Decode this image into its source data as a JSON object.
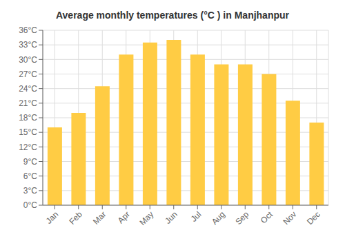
{
  "chart_data": {
    "type": "bar",
    "title": "Average monthly temperatures (°C ) in Manjhanpur",
    "categories": [
      "Jan",
      "Feb",
      "Mar",
      "Apr",
      "May",
      "Jun",
      "Jul",
      "Aug",
      "Sep",
      "Oct",
      "Nov",
      "Dec"
    ],
    "values": [
      16,
      19,
      24.5,
      31,
      33.5,
      34,
      31,
      29,
      29,
      27,
      21.5,
      17
    ],
    "color": "#FFCC44",
    "ylim": [
      0,
      36
    ],
    "yticks": [
      {
        "value": 0,
        "label": "0°C"
      },
      {
        "value": 3,
        "label": "3°C"
      },
      {
        "value": 6,
        "label": "6°C"
      },
      {
        "value": 9,
        "label": "9°C"
      },
      {
        "value": 12,
        "label": "12°C"
      },
      {
        "value": 15,
        "label": "15°C"
      },
      {
        "value": 18,
        "label": "18°C"
      },
      {
        "value": 21,
        "label": "21°C"
      },
      {
        "value": 24,
        "label": "24°C"
      },
      {
        "value": 27,
        "label": "27°C"
      },
      {
        "value": 30,
        "label": "30°C"
      },
      {
        "value": 33,
        "label": "33°C"
      },
      {
        "value": 36,
        "label": "36°C"
      }
    ],
    "grid": true
  }
}
